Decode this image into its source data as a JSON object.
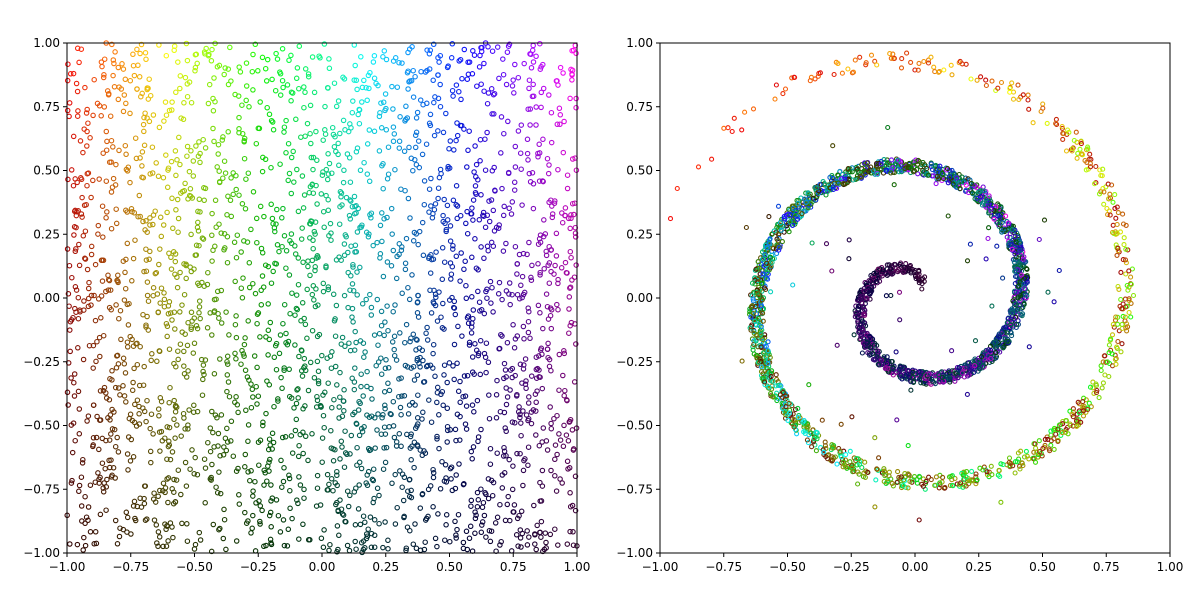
{
  "chart_data": [
    {
      "type": "scatter",
      "title": "",
      "xlabel": "",
      "ylabel": "",
      "xlim": [
        -1.0,
        1.0
      ],
      "ylim": [
        -1.0,
        1.0
      ],
      "x_ticks": [
        "−1.00",
        "−0.75",
        "−0.50",
        "−0.25",
        "0.00",
        "0.25",
        "0.50",
        "0.75",
        "1.00"
      ],
      "y_ticks": [
        "−1.00",
        "−0.75",
        "−0.50",
        "−0.25",
        "0.00",
        "0.25",
        "0.50",
        "0.75",
        "1.00"
      ],
      "grid": false,
      "legend": "none",
      "points": "~6000 uniformly distributed points over [-1,1]x[-1,1]",
      "color_encoding": {
        "hue": "varies with x (red at left → yellow → green → cyan at top-center → blue → magenta at right)",
        "brightness": "increases with y (dark at bottom, bright at top)",
        "marker": "small hollow circles"
      },
      "corner_colors": {
        "top_left": "#e01010",
        "top_center": "#10e0e0",
        "top_right": "#ff10ff",
        "bottom_left": "#300a00",
        "bottom_right": "#30001a"
      }
    },
    {
      "type": "scatter",
      "title": "",
      "xlabel": "",
      "ylabel": "",
      "xlim": [
        -1.0,
        1.0
      ],
      "ylim": [
        -1.0,
        1.0
      ],
      "x_ticks": [
        "−1.00",
        "−0.75",
        "−0.50",
        "−0.25",
        "0.00",
        "0.25",
        "0.50",
        "0.75",
        "1.00"
      ],
      "y_ticks": [
        "−1.00",
        "−0.75",
        "−0.50",
        "−0.25",
        "0.00",
        "0.25",
        "0.50",
        "0.75",
        "1.00"
      ],
      "grid": false,
      "legend": "none",
      "points": "same points mapped onto a spiral; colors preserved from left panel",
      "spiral": {
        "center": [
          0.0,
          0.0
        ],
        "start_point": [
          -0.95,
          0.15
        ],
        "end_point_inner": [
          0.0,
          -0.02
        ],
        "outer_radius_top": 0.89,
        "inner_loop_radius": 0.6,
        "core_radius": 0.35
      }
    }
  ]
}
